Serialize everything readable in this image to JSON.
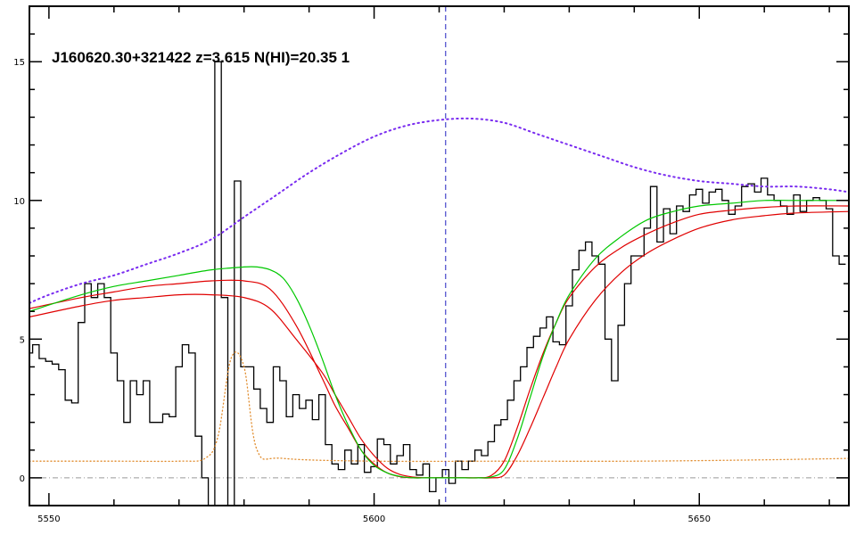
{
  "chart_data": {
    "type": "line",
    "title": "J160620.30+321422 z=3.615 N(HI)=20.35 1",
    "xlabel": "",
    "ylabel": "",
    "xlim": [
      5547,
      5673
    ],
    "ylim": [
      -1,
      17
    ],
    "x_ticks": [
      5550,
      5600,
      5650
    ],
    "y_ticks": [
      0,
      5,
      10,
      15
    ],
    "grid": false,
    "colors": {
      "flux": "#000000",
      "error": "#e08a2a",
      "continuum": "#7a2cf0",
      "model": "#00c800",
      "model_bounds": "#e00000",
      "line_center": "#2020c0",
      "zero_line": "#999999"
    },
    "line_center_x": 5611,
    "series": [
      {
        "style": "step",
        "x": [
          5547,
          5548,
          5549,
          5550,
          5551,
          5552,
          5553,
          5554,
          5555,
          5556,
          5557,
          5558,
          5559,
          5560,
          5561,
          5562,
          5563,
          5564,
          5565,
          5566,
          5567,
          5568,
          5569,
          5570,
          5571,
          5572,
          5573,
          5574,
          5575,
          5576,
          5577,
          5578,
          5579,
          5580,
          5581,
          5582,
          5583,
          5584,
          5585,
          5586,
          5587,
          5588,
          5589,
          5590,
          5591,
          5592,
          5593,
          5594,
          5595,
          5596,
          5597,
          5598,
          5599,
          5600,
          5601,
          5602,
          5603,
          5604,
          5605,
          5606,
          5607,
          5608,
          5609,
          5610,
          5611,
          5612,
          5613,
          5614,
          5615,
          5616,
          5617,
          5618,
          5619,
          5620,
          5621,
          5622,
          5623,
          5624,
          5625,
          5626,
          5627,
          5628,
          5629,
          5630,
          5631,
          5632,
          5633,
          5634,
          5635,
          5636,
          5637,
          5638,
          5639,
          5640,
          5641,
          5642,
          5643,
          5644,
          5645,
          5646,
          5647,
          5648,
          5649,
          5650,
          5651,
          5652,
          5653,
          5654,
          5655,
          5656,
          5657,
          5658,
          5659,
          5660,
          5661,
          5662,
          5663,
          5664,
          5665,
          5666,
          5667,
          5668,
          5669,
          5670,
          5671,
          5672
        ],
        "y": [
          4.5,
          4.8,
          4.3,
          4.2,
          4.1,
          3.9,
          2.8,
          2.7,
          5.6,
          7.0,
          6.5,
          7.0,
          6.5,
          4.5,
          3.5,
          2.0,
          3.5,
          3.0,
          3.5,
          2.0,
          2.0,
          2.3,
          2.2,
          4.0,
          4.8,
          4.5,
          1.5,
          0.0,
          -1.0,
          15.0,
          6.5,
          -1.0,
          10.7,
          4.0,
          4.0,
          3.2,
          2.5,
          2.0,
          4.0,
          3.5,
          2.2,
          3.0,
          2.5,
          2.8,
          2.1,
          3.0,
          1.2,
          0.5,
          0.3,
          1.0,
          0.5,
          1.2,
          0.2,
          0.4,
          1.4,
          1.2,
          0.5,
          0.8,
          1.2,
          0.3,
          0.1,
          0.5,
          -0.5,
          0.0,
          0.3,
          -0.2,
          0.6,
          0.3,
          0.6,
          1.0,
          0.8,
          1.3,
          1.9,
          2.1,
          2.8,
          3.5,
          4.0,
          4.7,
          5.1,
          5.4,
          5.8,
          4.9,
          4.8,
          6.2,
          7.5,
          8.2,
          8.5,
          8.0,
          7.7,
          5.0,
          3.5,
          5.5,
          7.0,
          8.0,
          8.0,
          9.0,
          10.5,
          8.5,
          9.7,
          8.8,
          9.8,
          9.6,
          10.2,
          10.4,
          9.9,
          10.3,
          10.4,
          10.0,
          9.5,
          9.8,
          10.5,
          10.6,
          10.3,
          10.8,
          10.2,
          10.0,
          9.8,
          9.5,
          10.2,
          9.6,
          10.0,
          10.1,
          10.0,
          9.7,
          8.0,
          7.7
        ]
      },
      {
        "style": "dotted",
        "x": [
          5547,
          5550,
          5555,
          5560,
          5565,
          5570,
          5575,
          5580,
          5585,
          5590,
          5595,
          5600,
          5605,
          5610,
          5615,
          5620,
          5625,
          5630,
          5635,
          5640,
          5645,
          5650,
          5655,
          5660,
          5665,
          5670,
          5673
        ],
        "y": [
          6.3,
          6.6,
          7.0,
          7.3,
          7.7,
          8.1,
          8.6,
          9.4,
          10.2,
          11.0,
          11.7,
          12.3,
          12.7,
          12.9,
          12.95,
          12.8,
          12.4,
          12.0,
          11.6,
          11.2,
          10.9,
          10.7,
          10.6,
          10.5,
          10.5,
          10.4,
          10.3
        ]
      },
      {
        "style": "dotted",
        "x": [
          5547,
          5560,
          5570,
          5574,
          5576,
          5578,
          5580,
          5582,
          5586,
          5600,
          5620,
          5640,
          5660,
          5673
        ],
        "y": [
          0.6,
          0.6,
          0.6,
          0.7,
          1.5,
          4.3,
          4.0,
          1.0,
          0.7,
          0.6,
          0.6,
          0.6,
          0.65,
          0.7
        ]
      },
      {
        "style": "solid",
        "x": [
          5547,
          5555,
          5560,
          5565,
          5570,
          5575,
          5580,
          5584,
          5588,
          5592,
          5594,
          5596,
          5598,
          5600,
          5602,
          5604,
          5606,
          5608,
          5610,
          5612,
          5614,
          5616,
          5618,
          5620,
          5622,
          5624,
          5626,
          5628,
          5630,
          5634,
          5638,
          5642,
          5646,
          5650,
          5655,
          5660,
          5665,
          5673
        ],
        "y": [
          6.1,
          6.5,
          6.7,
          6.9,
          7.0,
          7.1,
          7.1,
          6.8,
          5.5,
          3.6,
          2.6,
          1.8,
          1.0,
          0.5,
          0.18,
          0.04,
          0.0,
          0.0,
          0.0,
          0.0,
          0.0,
          0.0,
          0.08,
          0.6,
          1.8,
          3.2,
          4.5,
          5.6,
          6.5,
          7.6,
          8.3,
          8.8,
          9.2,
          9.5,
          9.65,
          9.75,
          9.8,
          9.8
        ]
      },
      {
        "style": "solid",
        "x": [
          5547,
          5555,
          5560,
          5565,
          5570,
          5575,
          5580,
          5582,
          5584,
          5586,
          5588,
          5590,
          5592,
          5594,
          5596,
          5598,
          5600,
          5602,
          5604,
          5606,
          5608,
          5610,
          5612,
          5614,
          5616,
          5618,
          5620,
          5622,
          5624,
          5626,
          5628,
          5630,
          5634,
          5638,
          5642,
          5646,
          5650,
          5655,
          5660,
          5665,
          5673
        ],
        "y": [
          6.0,
          6.6,
          6.9,
          7.1,
          7.3,
          7.5,
          7.6,
          7.6,
          7.5,
          7.2,
          6.5,
          5.5,
          4.3,
          3.0,
          1.9,
          1.0,
          0.45,
          0.18,
          0.05,
          0.0,
          0.0,
          0.0,
          0.0,
          0.0,
          0.0,
          0.03,
          0.3,
          1.4,
          2.9,
          4.4,
          5.6,
          6.6,
          7.9,
          8.7,
          9.3,
          9.6,
          9.8,
          9.9,
          10.0,
          10.0,
          10.0
        ]
      },
      {
        "style": "solid",
        "x": [
          5547,
          5555,
          5560,
          5565,
          5570,
          5575,
          5580,
          5584,
          5588,
          5592,
          5594,
          5596,
          5598,
          5600,
          5602,
          5604,
          5606,
          5608,
          5610,
          5612,
          5614,
          5616,
          5618,
          5620,
          5622,
          5624,
          5626,
          5628,
          5630,
          5634,
          5638,
          5642,
          5646,
          5650,
          5655,
          5660,
          5665,
          5673
        ],
        "y": [
          5.8,
          6.2,
          6.4,
          6.5,
          6.6,
          6.6,
          6.5,
          6.1,
          5.0,
          3.8,
          3.0,
          2.2,
          1.4,
          0.8,
          0.35,
          0.12,
          0.03,
          0.0,
          0.0,
          0.0,
          0.0,
          0.0,
          0.0,
          0.1,
          0.8,
          1.8,
          2.9,
          4.0,
          5.0,
          6.4,
          7.4,
          8.1,
          8.6,
          9.0,
          9.3,
          9.45,
          9.55,
          9.6
        ]
      }
    ]
  }
}
